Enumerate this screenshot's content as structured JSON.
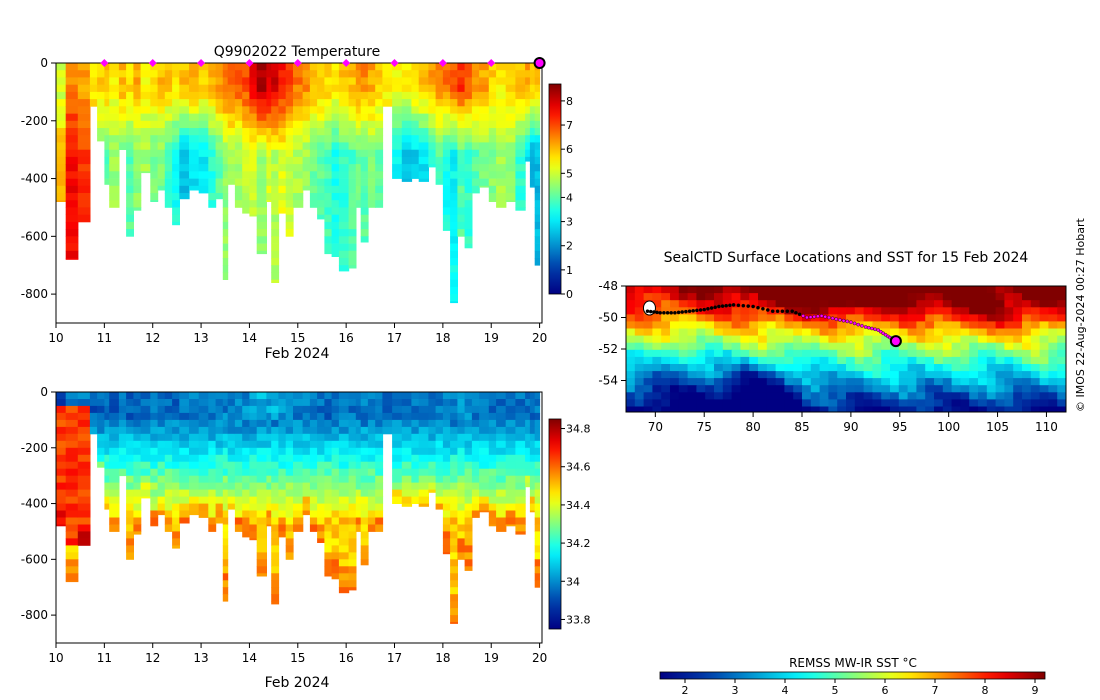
{
  "credit": "© IMOS 22-Aug-2024 00:27 Hobart",
  "chart_data": [
    {
      "type": "heatmap",
      "name": "temperature-section",
      "title": "Q9902022  Temperature",
      "xlabel": "Feb 2024",
      "ylabel": "",
      "xlim": [
        10,
        20.05
      ],
      "ylim": [
        -900,
        0
      ],
      "x_ticks": [
        10,
        11,
        12,
        13,
        14,
        15,
        16,
        17,
        18,
        19,
        20
      ],
      "y_ticks": [
        0,
        -200,
        -400,
        -600,
        -800
      ],
      "colorbar": {
        "min": 0,
        "max": 8.7,
        "ticks": [
          0,
          1,
          2,
          3,
          4,
          5,
          6,
          7,
          8
        ]
      },
      "markers_x": [
        11,
        12,
        13,
        14,
        15,
        16,
        17,
        18,
        19
      ],
      "highlight_x": 20,
      "profiles": [
        [
          10.0,
          480,
          5.0,
          6.0
        ],
        [
          10.2,
          680,
          6.5,
          7.6
        ],
        [
          10.45,
          550,
          6.2,
          7.2
        ],
        [
          10.7,
          150,
          5.5,
          6.2
        ],
        [
          10.85,
          270,
          5.8,
          4.2
        ],
        [
          11.0,
          420,
          6.0,
          4.0
        ],
        [
          11.1,
          500,
          5.5,
          4.5
        ],
        [
          11.3,
          300,
          6.0,
          4.2
        ],
        [
          11.45,
          600,
          5.8,
          4.0
        ],
        [
          11.6,
          510,
          6.2,
          4.4
        ],
        [
          11.75,
          380,
          5.5,
          4.6
        ],
        [
          11.95,
          480,
          5.8,
          4.2
        ],
        [
          12.1,
          440,
          6.0,
          4.3
        ],
        [
          12.25,
          500,
          5.9,
          3.7
        ],
        [
          12.4,
          560,
          5.6,
          3.4
        ],
        [
          12.55,
          470,
          6.0,
          2.6
        ],
        [
          12.75,
          440,
          6.2,
          2.9
        ],
        [
          12.95,
          450,
          5.8,
          3.1
        ],
        [
          13.15,
          500,
          6.1,
          3.6
        ],
        [
          13.3,
          470,
          6.4,
          4.0
        ],
        [
          13.45,
          750,
          6.6,
          4.5
        ],
        [
          13.55,
          420,
          6.8,
          4.7
        ],
        [
          13.7,
          500,
          6.9,
          4.6
        ],
        [
          13.85,
          520,
          7.0,
          4.9
        ],
        [
          14.0,
          530,
          7.6,
          5.0
        ],
        [
          14.15,
          660,
          8.3,
          4.6
        ],
        [
          14.35,
          480,
          7.8,
          5.1
        ],
        [
          14.45,
          760,
          8.0,
          4.8
        ],
        [
          14.6,
          520,
          7.4,
          5.2
        ],
        [
          14.75,
          600,
          7.0,
          5.0
        ],
        [
          14.9,
          500,
          6.6,
          4.7
        ],
        [
          15.1,
          440,
          6.4,
          4.6
        ],
        [
          15.25,
          500,
          6.1,
          4.2
        ],
        [
          15.4,
          540,
          6.0,
          4.0
        ],
        [
          15.55,
          660,
          5.8,
          3.8
        ],
        [
          15.7,
          670,
          5.6,
          3.5
        ],
        [
          15.85,
          720,
          5.9,
          3.7
        ],
        [
          16.05,
          710,
          6.0,
          3.9
        ],
        [
          16.2,
          500,
          6.3,
          4.2
        ],
        [
          16.3,
          620,
          6.4,
          4.0
        ],
        [
          16.45,
          500,
          6.2,
          4.3
        ],
        [
          16.6,
          500,
          5.9,
          4.1
        ],
        [
          16.75,
          150,
          5.6,
          4.6
        ],
        [
          16.95,
          400,
          5.4,
          3.2
        ],
        [
          17.15,
          410,
          5.6,
          2.6
        ],
        [
          17.35,
          400,
          5.8,
          2.7
        ],
        [
          17.5,
          410,
          6.0,
          2.9
        ],
        [
          17.7,
          360,
          6.2,
          3.5
        ],
        [
          17.85,
          420,
          6.4,
          4.0
        ],
        [
          18.0,
          580,
          6.6,
          3.4
        ],
        [
          18.15,
          830,
          6.8,
          3.2
        ],
        [
          18.3,
          600,
          7.2,
          3.9
        ],
        [
          18.45,
          640,
          6.8,
          3.7
        ],
        [
          18.6,
          450,
          6.4,
          4.0
        ],
        [
          18.75,
          430,
          6.2,
          4.3
        ],
        [
          18.95,
          480,
          5.8,
          4.4
        ],
        [
          19.1,
          500,
          5.6,
          4.6
        ],
        [
          19.3,
          480,
          5.8,
          4.4
        ],
        [
          19.5,
          510,
          6.0,
          3.6
        ],
        [
          19.7,
          340,
          6.2,
          3.0
        ],
        [
          19.8,
          430,
          5.9,
          2.4
        ],
        [
          19.9,
          700,
          6.1,
          2.5
        ]
      ]
    },
    {
      "type": "heatmap",
      "name": "salinity-section",
      "title": "",
      "xlabel": "Feb 2024",
      "ylabel": "",
      "xlim": [
        10,
        20.05
      ],
      "ylim": [
        -900,
        0
      ],
      "x_ticks": [
        10,
        11,
        12,
        13,
        14,
        15,
        16,
        17,
        18,
        19,
        20
      ],
      "y_ticks": [
        0,
        -200,
        -400,
        -600,
        -800
      ],
      "colorbar": {
        "min": 33.75,
        "max": 34.85,
        "ticks": [
          33.8,
          34,
          34.2,
          34.4,
          34.6,
          34.8
        ]
      }
    },
    {
      "type": "heatmap",
      "name": "sst-map",
      "title": "SealCTD Surface Locations and SST for 15 Feb 2024",
      "xlabel": "",
      "ylabel": "",
      "xlim": [
        67,
        112
      ],
      "ylim": [
        -56,
        -48
      ],
      "x_ticks": [
        70,
        75,
        80,
        85,
        90,
        95,
        100,
        105,
        110
      ],
      "y_ticks": [
        -48,
        -50,
        -52,
        -54
      ],
      "track": [
        [
          69.2,
          -49.6
        ],
        [
          70.5,
          -49.7
        ],
        [
          72.0,
          -49.7
        ],
        [
          73.5,
          -49.6
        ],
        [
          75.0,
          -49.5
        ],
        [
          76.5,
          -49.3
        ],
        [
          78.0,
          -49.2
        ],
        [
          80.0,
          -49.3
        ],
        [
          82.0,
          -49.6
        ],
        [
          84.0,
          -49.6
        ],
        [
          85.5,
          -50.0
        ],
        [
          87.0,
          -49.9
        ],
        [
          88.5,
          -50.1
        ],
        [
          90.0,
          -50.3
        ],
        [
          91.5,
          -50.6
        ],
        [
          92.8,
          -50.8
        ],
        [
          93.8,
          -51.2
        ],
        [
          94.6,
          -51.5
        ]
      ],
      "current_position": [
        94.6,
        -51.5
      ],
      "colorbar": {
        "label": "REMSS MW-IR SST °C",
        "min": 1.5,
        "max": 9.2,
        "ticks": [
          2,
          3,
          4,
          5,
          6,
          7,
          8,
          9
        ]
      }
    }
  ]
}
